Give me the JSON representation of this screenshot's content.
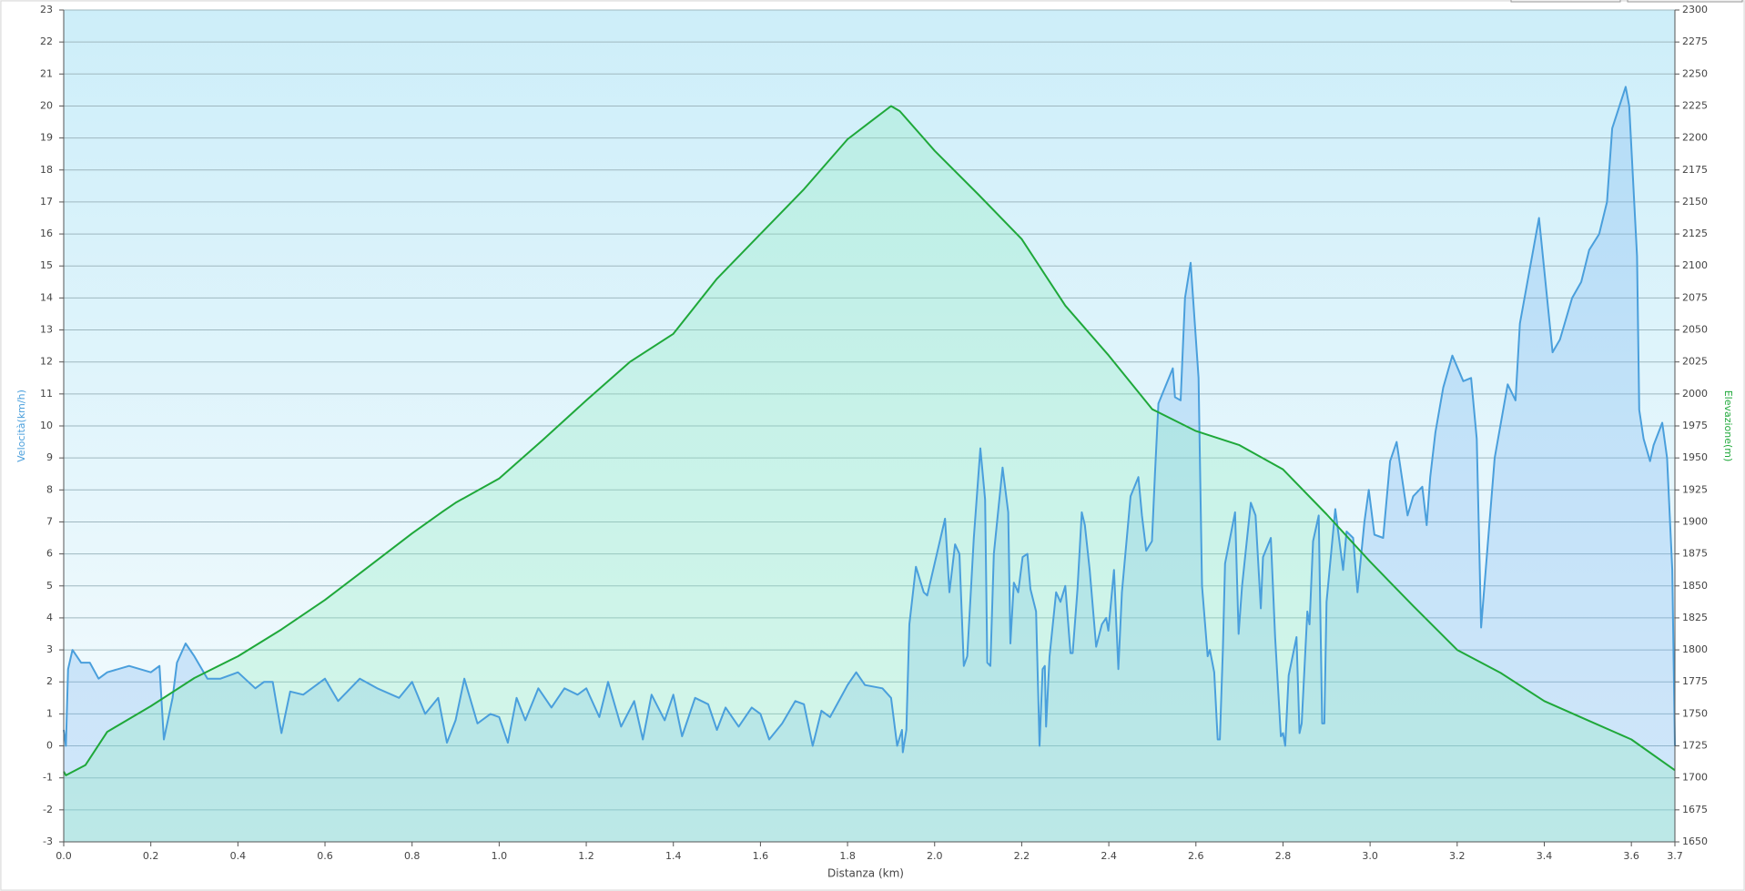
{
  "chart_data": {
    "type": "line",
    "xlabel": "Distanza  (km)",
    "ylabel": "Velocità(km/h)",
    "y2label": "Elevazione(m)",
    "xlim": [
      0,
      3.7
    ],
    "ylim": [
      -3,
      23
    ],
    "y2lim": [
      1650,
      2300
    ],
    "grid": true,
    "xticks": [
      {
        "value": 0,
        "label": "0.0"
      },
      0.2,
      0.4,
      0.6,
      0.8,
      {
        "value": 1,
        "label": "1.0"
      },
      1.2,
      1.4,
      1.6,
      1.8,
      {
        "value": 2,
        "label": "2.0"
      },
      2.2,
      2.4,
      2.6,
      2.8,
      {
        "value": 3,
        "label": "3.0"
      },
      3.2,
      3.4,
      3.6,
      3.7
    ],
    "yticks": [
      -3,
      -2,
      -1,
      0,
      1,
      2,
      3,
      4,
      5,
      6,
      7,
      8,
      9,
      10,
      11,
      12,
      13,
      14,
      15,
      16,
      17,
      18,
      19,
      20,
      21,
      22,
      23
    ],
    "y2ticks": [
      1650,
      1675,
      1700,
      1725,
      1750,
      1775,
      1800,
      1825,
      1850,
      1875,
      1900,
      1925,
      1950,
      1975,
      2000,
      2025,
      2050,
      2075,
      2100,
      2125,
      2150,
      2175,
      2200,
      2225,
      2250,
      2275,
      2300
    ],
    "series": [
      {
        "color": "#4a9fdc",
        "axis": "y",
        "x": [
          0,
          0.005,
          0.01,
          0.02,
          0.04,
          0.06,
          0.08,
          0.1,
          0.15,
          0.2,
          0.22,
          0.23,
          0.25,
          0.26,
          0.28,
          0.3,
          0.33,
          0.36,
          0.4,
          0.44,
          0.46,
          0.48,
          0.5,
          0.52,
          0.55,
          0.6,
          0.63,
          0.68,
          0.72,
          0.77,
          0.8,
          0.83,
          0.86,
          0.88,
          0.9,
          0.92,
          0.95,
          0.98,
          1.0,
          1.02,
          1.04,
          1.06,
          1.09,
          1.12,
          1.15,
          1.18,
          1.2,
          1.23,
          1.25,
          1.28,
          1.31,
          1.33,
          1.35,
          1.38,
          1.4,
          1.42,
          1.45,
          1.48,
          1.5,
          1.52,
          1.55,
          1.58,
          1.6,
          1.62,
          1.65,
          1.68,
          1.7,
          1.72,
          1.74,
          1.76,
          1.8,
          1.82,
          1.84,
          1.88,
          1.9,
          1.914,
          1.925,
          1.927,
          1.935,
          1.942,
          1.957,
          1.975,
          1.983,
          2.024,
          2.034,
          2.047,
          2.057,
          2.067,
          2.075,
          2.09,
          2.105,
          2.116,
          2.121,
          2.128,
          2.136,
          2.156,
          2.169,
          2.174,
          2.182,
          2.192,
          2.202,
          2.213,
          2.22,
          2.233,
          2.241,
          2.248,
          2.253,
          2.256,
          2.264,
          2.279,
          2.289,
          2.3,
          2.312,
          2.317,
          2.328,
          2.338,
          2.345,
          2.356,
          2.371,
          2.384,
          2.394,
          2.399,
          2.412,
          2.422,
          2.43,
          2.45,
          2.468,
          2.476,
          2.486,
          2.499,
          2.506,
          2.514,
          2.547,
          2.552,
          2.565,
          2.575,
          2.588,
          2.606,
          2.614,
          2.627,
          2.632,
          2.642,
          2.65,
          2.655,
          2.662,
          2.667,
          2.69,
          2.698,
          2.706,
          2.726,
          2.737,
          2.749,
          2.754,
          2.772,
          2.782,
          2.795,
          2.8,
          2.805,
          2.813,
          2.831,
          2.838,
          2.843,
          2.856,
          2.861,
          2.869,
          2.882,
          2.89,
          2.895,
          2.9,
          2.92,
          2.938,
          2.946,
          2.961,
          2.971,
          2.987,
          2.997,
          3.01,
          3.03,
          3.046,
          3.061,
          3.086,
          3.099,
          3.12,
          3.13,
          3.138,
          3.15,
          3.168,
          3.189,
          3.214,
          3.232,
          3.245,
          3.255,
          3.286,
          3.316,
          3.334,
          3.344,
          3.388,
          3.419,
          3.436,
          3.464,
          3.485,
          3.503,
          3.526,
          3.544,
          3.556,
          3.587,
          3.595,
          3.613,
          3.618,
          3.628,
          3.643,
          3.651,
          3.671,
          3.682,
          3.694,
          3.7
        ],
        "values": [
          0.5,
          0,
          2.4,
          3,
          2.6,
          2.6,
          2.1,
          2.3,
          2.5,
          2.3,
          2.5,
          0.2,
          1.5,
          2.6,
          3.2,
          2.8,
          2.1,
          2.1,
          2.3,
          1.8,
          2,
          2,
          0.4,
          1.7,
          1.6,
          2.1,
          1.4,
          2.1,
          1.8,
          1.5,
          2,
          1,
          1.5,
          0.1,
          0.8,
          2.1,
          0.7,
          1,
          0.9,
          0.1,
          1.5,
          0.8,
          1.8,
          1.2,
          1.8,
          1.6,
          1.8,
          0.9,
          2,
          0.6,
          1.4,
          0.2,
          1.6,
          0.8,
          1.6,
          0.3,
          1.5,
          1.3,
          0.5,
          1.2,
          0.6,
          1.2,
          1,
          0.2,
          0.7,
          1.4,
          1.3,
          0,
          1.1,
          0.9,
          1.9,
          2.3,
          1.9,
          1.8,
          1.5,
          0,
          0.5,
          -0.2,
          0.5,
          3.8,
          5.6,
          4.8,
          4.7,
          7.1,
          4.8,
          6.3,
          6,
          2.5,
          2.8,
          6.5,
          9.3,
          7.7,
          2.6,
          2.5,
          6,
          8.7,
          7.3,
          3.2,
          5.1,
          4.8,
          5.9,
          6,
          4.9,
          4.2,
          0,
          2.4,
          2.5,
          0.6,
          2.8,
          4.8,
          4.5,
          5,
          2.9,
          2.9,
          4.9,
          7.3,
          6.9,
          5.5,
          3.1,
          3.8,
          4,
          3.6,
          5.5,
          2.4,
          4.8,
          7.8,
          8.4,
          7.2,
          6.1,
          6.4,
          8.5,
          10.7,
          11.8,
          10.9,
          10.8,
          14,
          15.1,
          11.5,
          5,
          2.8,
          3,
          2.3,
          0.2,
          0.2,
          3,
          5.7,
          7.3,
          3.5,
          5,
          7.6,
          7.2,
          4.3,
          5.9,
          6.5,
          3.4,
          0.3,
          0.4,
          0,
          2.2,
          3.4,
          0.4,
          0.7,
          4.2,
          3.8,
          6.4,
          7.2,
          0.7,
          0.7,
          4.5,
          7.4,
          5.5,
          6.7,
          6.5,
          4.8,
          7,
          8,
          6.6,
          6.5,
          8.9,
          9.5,
          7.2,
          7.8,
          8.1,
          6.9,
          8.4,
          9.8,
          11.2,
          12.2,
          11.4,
          11.5,
          9.6,
          3.7,
          9,
          11.3,
          10.8,
          13.2,
          16.5,
          12.3,
          12.7,
          14,
          14.5,
          15.5,
          16,
          17,
          19.3,
          20.6,
          20,
          15.3,
          10.5,
          9.6,
          8.9,
          9.4,
          10.1,
          9,
          5.5,
          0
        ]
      },
      {
        "color": "#1fa83a",
        "axis": "y2",
        "x": [
          0,
          0.005,
          0.05,
          0.1,
          0.2,
          0.3,
          0.4,
          0.5,
          0.6,
          0.7,
          0.8,
          0.87,
          0.9,
          1.0,
          1.1,
          1.2,
          1.3,
          1.4,
          1.5,
          1.6,
          1.7,
          1.8,
          1.85,
          1.9,
          1.92,
          2.0,
          2.1,
          2.2,
          2.3,
          2.4,
          2.5,
          2.6,
          2.7,
          2.8,
          2.9,
          3.0,
          3.1,
          3.2,
          3.3,
          3.4,
          3.5,
          3.6,
          3.7
        ],
        "values": [
          1705,
          1702,
          1710,
          1736,
          1756,
          1778,
          1795,
          1816,
          1839,
          1865,
          1891,
          1908,
          1915,
          1934,
          1964,
          1995,
          2025,
          2047,
          2090,
          2125,
          2160,
          2199,
          2212,
          2225,
          2221,
          2190,
          2156,
          2121,
          2069,
          2030,
          1988,
          1971,
          1960,
          1941,
          1906,
          1869,
          1834,
          1800,
          1782,
          1760,
          1745,
          1730,
          1706
        ]
      }
    ]
  }
}
